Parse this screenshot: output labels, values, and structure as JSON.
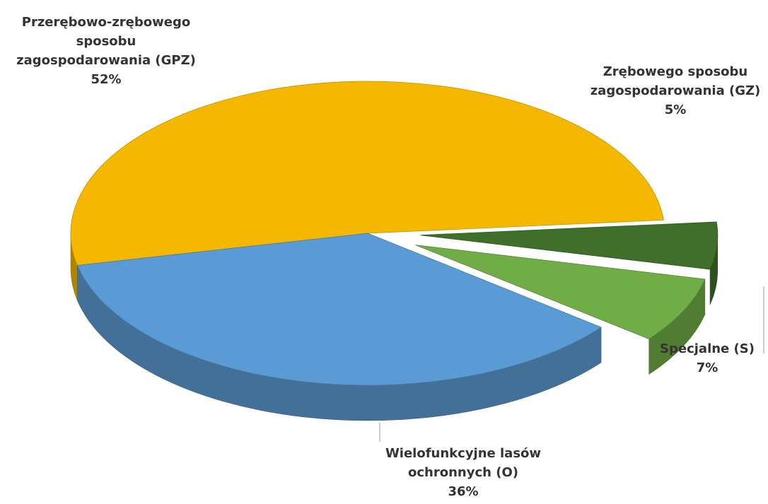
{
  "chart_data": {
    "type": "pie",
    "categories": [
      "Przerębowo-zrębowego sposobu zagospodarowania (GPZ)",
      "Wielofunkcyjne lasów ochronnych (O)",
      "Specjalne (S)",
      "Zrębowego sposobu zagospodarowania (GZ)"
    ],
    "values": [
      52,
      36,
      7,
      5
    ],
    "value_labels": [
      "52%",
      "36%",
      "7%",
      "5%"
    ],
    "colors": [
      "#f5b800",
      "#5b9bd5",
      "#70ad47",
      "#3f6f2b"
    ]
  }
}
